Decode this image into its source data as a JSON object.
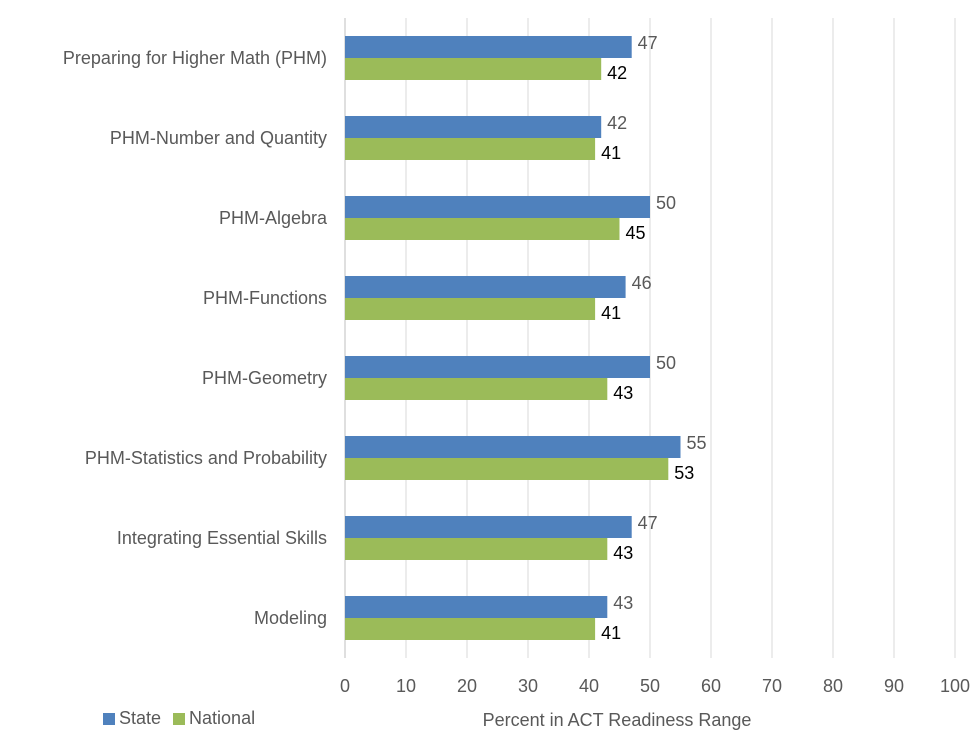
{
  "chart_data": {
    "type": "bar",
    "orientation": "horizontal",
    "title": "",
    "xlabel": "Percent in ACT Readiness Range",
    "ylabel": "",
    "xlim": [
      0,
      100
    ],
    "x_ticks": [
      0,
      10,
      20,
      30,
      40,
      50,
      60,
      70,
      80,
      90,
      100
    ],
    "grid": true,
    "legend_position": "bottom-left",
    "categories": [
      "Preparing for Higher Math (PHM)",
      "PHM-Number and Quantity",
      "PHM-Algebra",
      "PHM-Functions",
      "PHM-Geometry",
      "PHM-Statistics and Probability",
      "Integrating Essential Skills",
      "Modeling"
    ],
    "series": [
      {
        "name": "State",
        "color": "#4F81BD",
        "values": [
          47,
          42,
          50,
          46,
          50,
          55,
          47,
          43
        ]
      },
      {
        "name": "National",
        "color": "#9BBB59",
        "values": [
          42,
          41,
          45,
          41,
          43,
          53,
          43,
          41
        ]
      }
    ]
  }
}
